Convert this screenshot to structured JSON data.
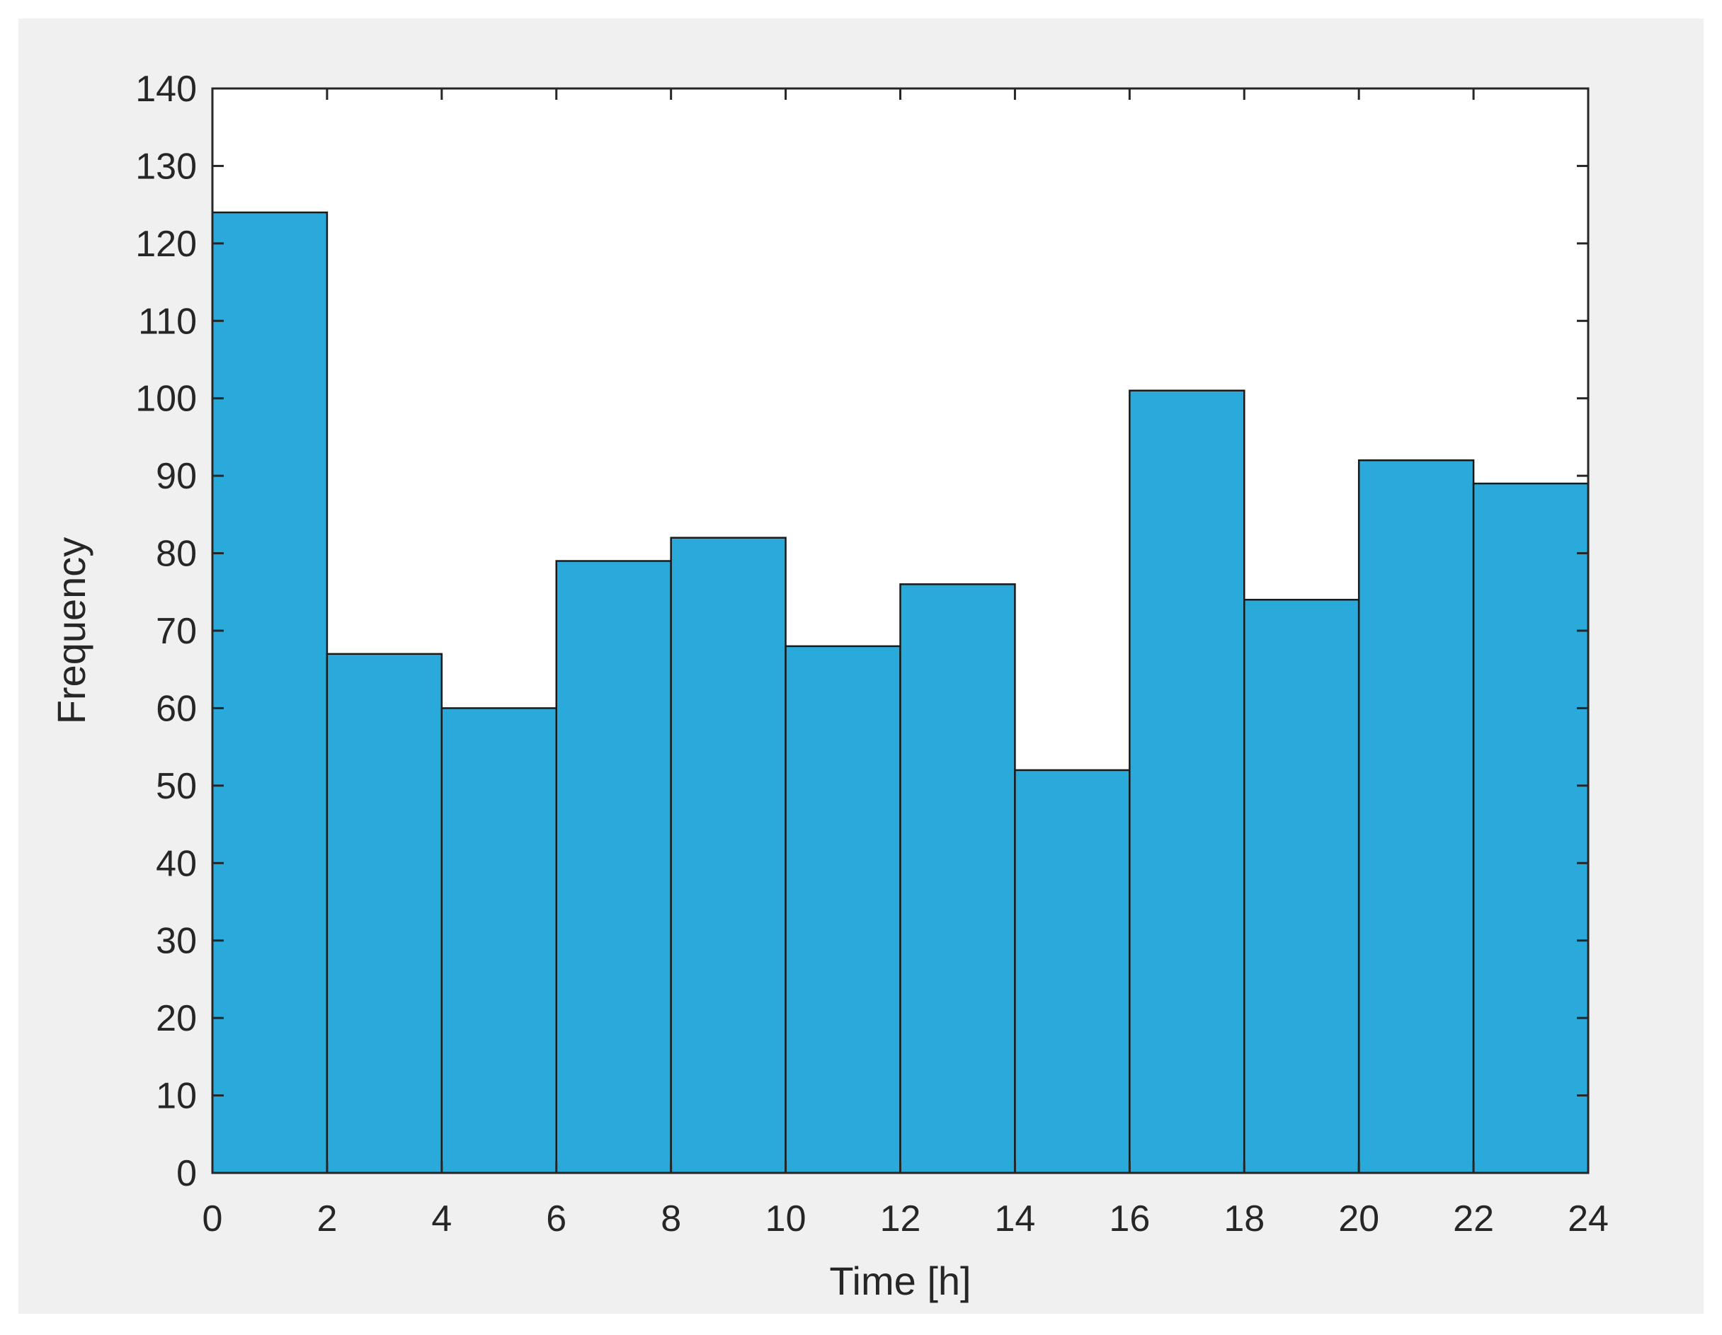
{
  "chart_data": {
    "type": "bar",
    "subtype": "histogram",
    "bin_edges": [
      0,
      2,
      4,
      6,
      8,
      10,
      12,
      14,
      16,
      18,
      20,
      22,
      24
    ],
    "values": [
      124,
      67,
      60,
      79,
      82,
      68,
      76,
      52,
      101,
      74,
      92,
      89
    ],
    "xlabel": "Time [h]",
    "ylabel": "Frequency",
    "xlim": [
      0,
      24
    ],
    "ylim": [
      0,
      140
    ],
    "xticks": [
      0,
      2,
      4,
      6,
      8,
      10,
      12,
      14,
      16,
      18,
      20,
      22,
      24
    ],
    "yticks": [
      0,
      10,
      20,
      30,
      40,
      50,
      60,
      70,
      80,
      90,
      100,
      110,
      120,
      130,
      140
    ],
    "grid": false,
    "bar_color": "#2aaadb",
    "edge_color": "#1a1a1a",
    "axes_background": "#ffffff",
    "figure_background": "#f0f0f0"
  }
}
